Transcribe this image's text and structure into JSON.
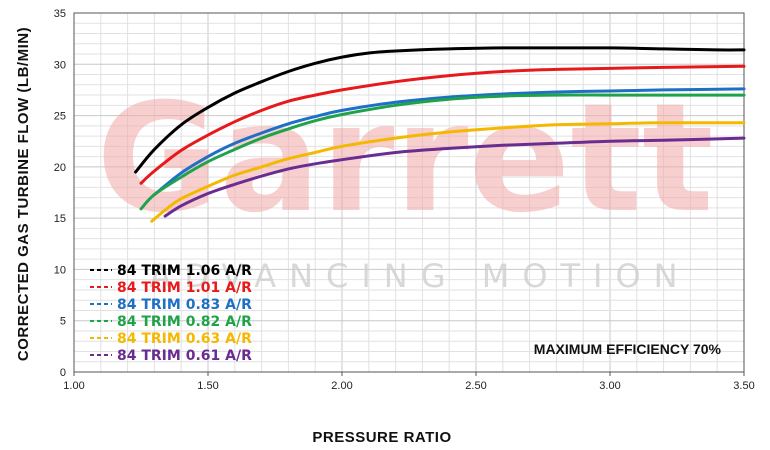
{
  "watermark": {
    "brand": "Garrett",
    "tagline": "ADVANCING MOTION"
  },
  "chart_data": {
    "type": "line",
    "title": "",
    "xlabel": "PRESSURE RATIO",
    "ylabel": "CORRECTED GAS TURBINE FLOW (LB/MIN)",
    "xlim": [
      1.0,
      3.5
    ],
    "ylim": [
      0,
      35
    ],
    "x_ticks": [
      "1.00",
      "1.50",
      "2.00",
      "2.50",
      "3.00",
      "3.50"
    ],
    "y_ticks": [
      "0",
      "5",
      "10",
      "15",
      "20",
      "25",
      "30",
      "35"
    ],
    "grid": true,
    "legend_position": "bottom-left",
    "annotation": "MAXIMUM EFFICIENCY 70%",
    "series": [
      {
        "name": "84 TRIM 1.06 A/R",
        "color": "#000000",
        "points": [
          [
            1.23,
            19.5
          ],
          [
            1.3,
            21.7
          ],
          [
            1.4,
            24.1
          ],
          [
            1.5,
            25.8
          ],
          [
            1.6,
            27.2
          ],
          [
            1.7,
            28.3
          ],
          [
            1.8,
            29.3
          ],
          [
            1.9,
            30.1
          ],
          [
            2.0,
            30.7
          ],
          [
            2.1,
            31.1
          ],
          [
            2.2,
            31.3
          ],
          [
            2.4,
            31.5
          ],
          [
            2.6,
            31.6
          ],
          [
            2.8,
            31.6
          ],
          [
            3.0,
            31.6
          ],
          [
            3.2,
            31.5
          ],
          [
            3.4,
            31.4
          ],
          [
            3.5,
            31.4
          ]
        ]
      },
      {
        "name": "84 TRIM 1.01 A/R",
        "color": "#e8191a",
        "points": [
          [
            1.25,
            18.4
          ],
          [
            1.3,
            19.6
          ],
          [
            1.4,
            21.6
          ],
          [
            1.5,
            23.1
          ],
          [
            1.6,
            24.4
          ],
          [
            1.7,
            25.5
          ],
          [
            1.8,
            26.4
          ],
          [
            1.9,
            27.0
          ],
          [
            2.0,
            27.5
          ],
          [
            2.2,
            28.3
          ],
          [
            2.4,
            28.9
          ],
          [
            2.6,
            29.3
          ],
          [
            2.8,
            29.5
          ],
          [
            3.0,
            29.6
          ],
          [
            3.2,
            29.7
          ],
          [
            3.5,
            29.8
          ]
        ]
      },
      {
        "name": "84 TRIM 0.83 A/R",
        "color": "#1f6fc6",
        "points": [
          [
            1.3,
            17.3
          ],
          [
            1.4,
            19.4
          ],
          [
            1.5,
            21.0
          ],
          [
            1.6,
            22.3
          ],
          [
            1.7,
            23.3
          ],
          [
            1.8,
            24.2
          ],
          [
            1.9,
            24.9
          ],
          [
            2.0,
            25.5
          ],
          [
            2.2,
            26.3
          ],
          [
            2.4,
            26.8
          ],
          [
            2.6,
            27.1
          ],
          [
            2.8,
            27.3
          ],
          [
            3.0,
            27.4
          ],
          [
            3.2,
            27.5
          ],
          [
            3.5,
            27.6
          ]
        ]
      },
      {
        "name": "84 TRIM 0.82 A/R",
        "color": "#1fa34a",
        "points": [
          [
            1.25,
            15.9
          ],
          [
            1.3,
            17.3
          ],
          [
            1.4,
            19.0
          ],
          [
            1.5,
            20.5
          ],
          [
            1.6,
            21.7
          ],
          [
            1.7,
            22.8
          ],
          [
            1.8,
            23.7
          ],
          [
            1.9,
            24.5
          ],
          [
            2.0,
            25.1
          ],
          [
            2.2,
            26.0
          ],
          [
            2.4,
            26.6
          ],
          [
            2.6,
            26.9
          ],
          [
            2.8,
            27.0
          ],
          [
            3.0,
            27.0
          ],
          [
            3.2,
            27.0
          ],
          [
            3.5,
            27.0
          ]
        ]
      },
      {
        "name": "84 TRIM 0.63 A/R",
        "color": "#f5b800",
        "points": [
          [
            1.29,
            14.7
          ],
          [
            1.35,
            16.0
          ],
          [
            1.4,
            16.9
          ],
          [
            1.5,
            18.1
          ],
          [
            1.6,
            19.2
          ],
          [
            1.7,
            20.0
          ],
          [
            1.8,
            20.8
          ],
          [
            1.9,
            21.4
          ],
          [
            2.0,
            22.0
          ],
          [
            2.2,
            22.8
          ],
          [
            2.4,
            23.4
          ],
          [
            2.6,
            23.8
          ],
          [
            2.8,
            24.1
          ],
          [
            3.0,
            24.2
          ],
          [
            3.2,
            24.3
          ],
          [
            3.5,
            24.3
          ]
        ]
      },
      {
        "name": "84 TRIM 0.61 A/R",
        "color": "#6a2c91",
        "points": [
          [
            1.34,
            15.2
          ],
          [
            1.4,
            16.2
          ],
          [
            1.5,
            17.4
          ],
          [
            1.6,
            18.3
          ],
          [
            1.7,
            19.1
          ],
          [
            1.8,
            19.8
          ],
          [
            1.9,
            20.3
          ],
          [
            2.0,
            20.7
          ],
          [
            2.2,
            21.4
          ],
          [
            2.4,
            21.8
          ],
          [
            2.6,
            22.1
          ],
          [
            2.8,
            22.3
          ],
          [
            3.0,
            22.5
          ],
          [
            3.2,
            22.6
          ],
          [
            3.5,
            22.8
          ]
        ]
      }
    ]
  }
}
